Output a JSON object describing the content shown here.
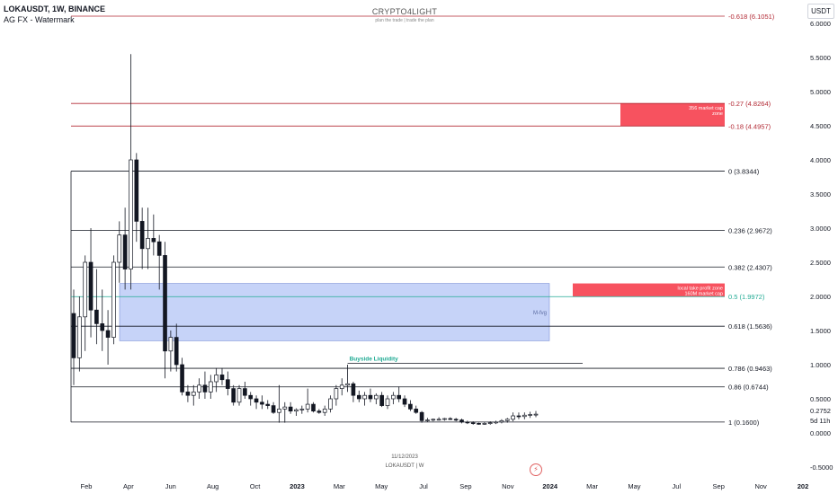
{
  "header": {
    "symbol_line": "LOKAUSDT, 1W, BINANCE",
    "indicator_line": "AG FX - Watermark"
  },
  "watermark": {
    "title": "CRYPTO4LIGHT",
    "subtitle": "plan the trade | trade the plan"
  },
  "currency_button": "USDT",
  "bottom_info": {
    "date": "11/12/2023",
    "label": "LOKAUSDT | W"
  },
  "colors": {
    "up": "#ffffff",
    "down": "#131722",
    "red_zone": "#f7525f",
    "blue_zone": "#b3c4f5",
    "red_line": "#b22833",
    "green_label": "#22ab94"
  },
  "chart_data": {
    "type": "candlestick",
    "ylim": [
      -0.5,
      6.0
    ],
    "y_ticks": [
      "6.0000",
      "5.5000",
      "5.0000",
      "4.5000",
      "4.0000",
      "3.5000",
      "3.0000",
      "2.5000",
      "2.0000",
      "1.5000",
      "1.0000",
      "0.5000",
      "0.0000",
      "-0.5000"
    ],
    "x_ticks": [
      "Feb",
      "Apr",
      "Jun",
      "Aug",
      "Oct",
      "2023",
      "Mar",
      "May",
      "Jul",
      "Sep",
      "Nov",
      "2024",
      "Mar",
      "May",
      "Jul",
      "Sep",
      "Nov",
      "202"
    ],
    "price_labels": {
      "current": "0.2752",
      "countdown": "5d 11h"
    },
    "fib_levels": [
      {
        "label": "-0.618 (6.1051)",
        "value": 6.1051,
        "color": "#b22833"
      },
      {
        "label": "-0.27 (4.8264)",
        "value": 4.8264,
        "color": "#b22833"
      },
      {
        "label": "-0.18 (4.4957)",
        "value": 4.4957,
        "color": "#b22833"
      },
      {
        "label": "0 (3.8344)",
        "value": 3.8344,
        "color": "#131722"
      },
      {
        "label": "0.236 (2.9672)",
        "value": 2.9672,
        "color": "#131722"
      },
      {
        "label": "0.382 (2.4307)",
        "value": 2.4307,
        "color": "#131722"
      },
      {
        "label": "0.5 (1.9972)",
        "value": 1.9972,
        "color": "#22ab94"
      },
      {
        "label": "0.618 (1.5636)",
        "value": 1.5636,
        "color": "#131722"
      },
      {
        "label": "0.786 (0.9463)",
        "value": 0.9463,
        "color": "#131722"
      },
      {
        "label": "0.86 (0.6744)",
        "value": 0.6744,
        "color": "#131722"
      },
      {
        "label": "1 (0.1600)",
        "value": 0.16,
        "color": "#131722"
      }
    ],
    "zones": [
      {
        "label": "356 market cap zone",
        "y_top": 4.83,
        "y_bottom": 4.5
      },
      {
        "label": "local take profit zone 160M market cap",
        "y_top": 2.19,
        "y_bottom": 2.0
      }
    ],
    "fvg": {
      "label": "M-fvg",
      "y_top": 2.19,
      "y_bottom": 1.35
    },
    "annotation": {
      "label": "Buyside Liquidity",
      "value": 1.02
    },
    "candles": [
      [
        1.75,
        2.1,
        0.7,
        1.1
      ],
      [
        1.1,
        2.0,
        0.9,
        1.7
      ],
      [
        1.7,
        2.6,
        1.2,
        2.5
      ],
      [
        2.5,
        3.0,
        1.4,
        1.8
      ],
      [
        1.8,
        2.4,
        1.3,
        1.6
      ],
      [
        1.6,
        2.1,
        1.2,
        1.5
      ],
      [
        1.5,
        1.8,
        1.0,
        1.4
      ],
      [
        1.4,
        2.6,
        1.3,
        2.5
      ],
      [
        2.5,
        3.1,
        2.2,
        2.9
      ],
      [
        2.9,
        3.3,
        2.1,
        2.4
      ],
      [
        2.4,
        5.55,
        2.1,
        4.0
      ],
      [
        4.0,
        4.1,
        2.8,
        3.1
      ],
      [
        3.1,
        3.3,
        2.4,
        2.7
      ],
      [
        2.7,
        3.3,
        2.4,
        2.85
      ],
      [
        2.85,
        3.2,
        2.6,
        2.8
      ],
      [
        2.8,
        2.9,
        2.1,
        2.6
      ],
      [
        2.6,
        2.8,
        0.8,
        1.2
      ],
      [
        1.2,
        1.5,
        0.9,
        1.4
      ],
      [
        1.4,
        1.6,
        0.9,
        1.0
      ],
      [
        1.0,
        1.1,
        0.55,
        0.6
      ],
      [
        0.6,
        0.7,
        0.45,
        0.55
      ],
      [
        0.55,
        0.7,
        0.4,
        0.6
      ],
      [
        0.6,
        0.8,
        0.5,
        0.7
      ],
      [
        0.7,
        0.9,
        0.5,
        0.6
      ],
      [
        0.6,
        0.85,
        0.5,
        0.75
      ],
      [
        0.75,
        0.95,
        0.6,
        0.85
      ],
      [
        0.85,
        0.95,
        0.7,
        0.78
      ],
      [
        0.78,
        0.9,
        0.55,
        0.65
      ],
      [
        0.65,
        0.7,
        0.4,
        0.45
      ],
      [
        0.45,
        0.7,
        0.4,
        0.65
      ],
      [
        0.65,
        0.75,
        0.5,
        0.55
      ],
      [
        0.55,
        0.6,
        0.4,
        0.5
      ],
      [
        0.5,
        0.55,
        0.35,
        0.45
      ],
      [
        0.45,
        0.55,
        0.35,
        0.42
      ],
      [
        0.42,
        0.48,
        0.35,
        0.4
      ],
      [
        0.4,
        0.45,
        0.28,
        0.3
      ],
      [
        0.3,
        0.7,
        0.15,
        0.35
      ],
      [
        0.35,
        0.45,
        0.15,
        0.38
      ],
      [
        0.38,
        0.45,
        0.28,
        0.32
      ],
      [
        0.32,
        0.36,
        0.25,
        0.34
      ],
      [
        0.34,
        0.4,
        0.28,
        0.35
      ],
      [
        0.35,
        0.65,
        0.3,
        0.42
      ],
      [
        0.42,
        0.45,
        0.3,
        0.32
      ],
      [
        0.32,
        0.35,
        0.28,
        0.3
      ],
      [
        0.3,
        0.4,
        0.25,
        0.35
      ],
      [
        0.35,
        0.55,
        0.3,
        0.5
      ],
      [
        0.5,
        0.7,
        0.4,
        0.65
      ],
      [
        0.65,
        0.8,
        0.55,
        0.7
      ],
      [
        0.7,
        1.0,
        0.6,
        0.72
      ],
      [
        0.72,
        0.75,
        0.45,
        0.55
      ],
      [
        0.55,
        0.62,
        0.45,
        0.5
      ],
      [
        0.5,
        0.6,
        0.4,
        0.55
      ],
      [
        0.55,
        0.65,
        0.45,
        0.5
      ],
      [
        0.5,
        0.58,
        0.42,
        0.55
      ],
      [
        0.55,
        0.6,
        0.38,
        0.4
      ],
      [
        0.4,
        0.55,
        0.35,
        0.5
      ],
      [
        0.5,
        0.6,
        0.42,
        0.55
      ],
      [
        0.55,
        0.68,
        0.45,
        0.5
      ],
      [
        0.5,
        0.55,
        0.38,
        0.42
      ],
      [
        0.42,
        0.48,
        0.32,
        0.35
      ],
      [
        0.35,
        0.4,
        0.28,
        0.3
      ],
      [
        0.3,
        0.32,
        0.15,
        0.18
      ],
      [
        0.18,
        0.22,
        0.16,
        0.19
      ],
      [
        0.19,
        0.21,
        0.17,
        0.2
      ],
      [
        0.2,
        0.23,
        0.18,
        0.2
      ],
      [
        0.2,
        0.22,
        0.18,
        0.21
      ],
      [
        0.21,
        0.23,
        0.19,
        0.2
      ],
      [
        0.2,
        0.22,
        0.17,
        0.19
      ],
      [
        0.19,
        0.21,
        0.14,
        0.16
      ],
      [
        0.16,
        0.18,
        0.13,
        0.15
      ],
      [
        0.15,
        0.17,
        0.12,
        0.14
      ],
      [
        0.14,
        0.15,
        0.12,
        0.13
      ],
      [
        0.13,
        0.16,
        0.12,
        0.14
      ],
      [
        0.14,
        0.17,
        0.12,
        0.15
      ],
      [
        0.15,
        0.18,
        0.13,
        0.16
      ],
      [
        0.16,
        0.2,
        0.14,
        0.18
      ],
      [
        0.18,
        0.22,
        0.15,
        0.2
      ],
      [
        0.2,
        0.3,
        0.17,
        0.25
      ],
      [
        0.25,
        0.3,
        0.2,
        0.24
      ],
      [
        0.24,
        0.3,
        0.2,
        0.26
      ],
      [
        0.26,
        0.31,
        0.22,
        0.27
      ],
      [
        0.27,
        0.32,
        0.23,
        0.275
      ]
    ]
  }
}
